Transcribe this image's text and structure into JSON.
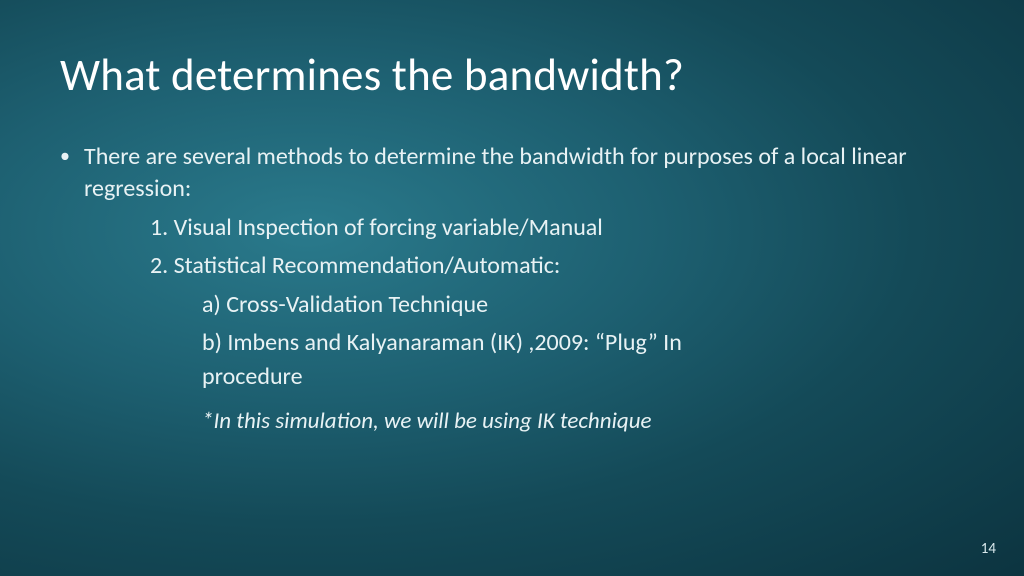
{
  "title": "What determines the bandwidth?",
  "bullet": {
    "text": "There are several methods to determine the bandwidth for purposes of a local linear regression:"
  },
  "sub": {
    "item1": "1. Visual Inspection of forcing variable/Manual",
    "item2": "2. Statistical Recommendation/Automatic:"
  },
  "subsub": {
    "a": "a) Cross-Validation Technique",
    "b": "b) Imbens and Kalyanaraman (IK) ,2009: “Plug” In",
    "b_cont": "procedure"
  },
  "note": "*In this simulation, we will be using IK technique",
  "pageNumber": "14",
  "colors": {
    "background_inner": "#2a7a8c",
    "background_outer": "#0c3440",
    "text": "#ffffff"
  },
  "typography": {
    "title_fontsize": 45,
    "body_fontsize": 24,
    "note_fontsize": 23,
    "pagenum_fontsize": 15,
    "font_family": "Segoe UI / Calibri"
  }
}
